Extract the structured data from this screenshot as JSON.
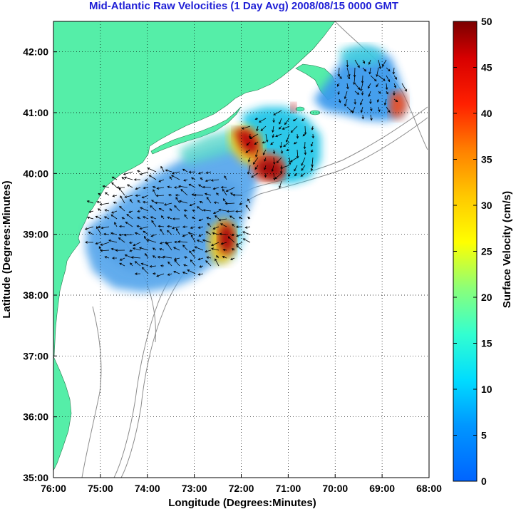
{
  "title": "Mid-Atlantic Raw Velocities (1 Day Avg) 2008/08/15 0000 GMT",
  "x_axis": {
    "label": "Longitude (Degrees:Minutes)",
    "range": [
      -76,
      -68
    ],
    "ticks": [
      "76:00",
      "75:00",
      "74:00",
      "73:00",
      "72:00",
      "71:00",
      "70:00",
      "69:00",
      "68:00"
    ]
  },
  "y_axis": {
    "label": "Latitude (Degrees:Minutes)",
    "range": [
      35,
      42.5
    ],
    "ticks": [
      "35:00",
      "36:00",
      "37:00",
      "38:00",
      "39:00",
      "40:00",
      "41:00",
      "42:00"
    ]
  },
  "colorbar": {
    "label": "Surface Velocity (cm/s)",
    "range": [
      0,
      50
    ],
    "ticks": [
      "0",
      "5",
      "10",
      "15",
      "20",
      "25",
      "30",
      "35",
      "40",
      "45",
      "50"
    ],
    "colormap": "jet"
  },
  "grid": "dotted",
  "colors": {
    "land": "#55eea8",
    "bathymetry": "#8c8c8c",
    "title": "#1f1fd6",
    "arrows": "#000000"
  }
}
